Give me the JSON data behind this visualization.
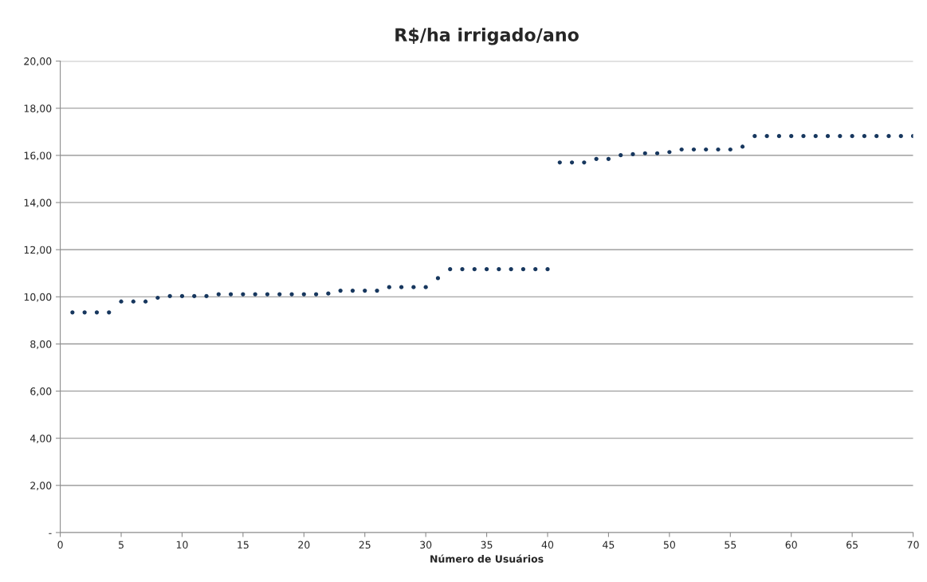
{
  "chart_data": {
    "type": "scatter",
    "title": "R$/ha irrigado/ano",
    "xlabel": "Número de Usuários",
    "x": [
      1,
      2,
      3,
      4,
      5,
      6,
      7,
      8,
      9,
      10,
      11,
      12,
      13,
      14,
      15,
      16,
      17,
      18,
      19,
      20,
      21,
      22,
      23,
      24,
      25,
      26,
      27,
      28,
      29,
      30,
      31,
      32,
      33,
      34,
      35,
      36,
      37,
      38,
      39,
      40,
      41,
      42,
      43,
      44,
      45,
      46,
      47,
      48,
      49,
      50,
      51,
      52,
      53,
      54,
      55,
      56,
      57,
      58,
      59,
      60,
      61,
      62,
      63,
      64,
      65,
      66,
      67,
      68,
      69,
      70
    ],
    "series": [
      {
        "color": "#17375e",
        "values": [
          9.34,
          9.34,
          9.34,
          9.34,
          9.8,
          9.8,
          9.8,
          9.96,
          10.03,
          10.03,
          10.03,
          10.03,
          10.11,
          10.11,
          10.11,
          10.11,
          10.11,
          10.11,
          10.11,
          10.11,
          10.11,
          10.14,
          10.26,
          10.26,
          10.26,
          10.26,
          10.41,
          10.41,
          10.41,
          10.41,
          10.79,
          11.17,
          11.17,
          11.17,
          11.17,
          11.17,
          11.17,
          11.17,
          11.17,
          11.17,
          15.7,
          15.7,
          15.7,
          15.85,
          15.85,
          16.01,
          16.05,
          16.09,
          16.09,
          16.14,
          16.25,
          16.25,
          16.25,
          16.25,
          16.25,
          16.37,
          16.82,
          16.82,
          16.82,
          16.82,
          16.82,
          16.82,
          16.82,
          16.82,
          16.82,
          16.82,
          16.82,
          16.82,
          16.82,
          16.82
        ]
      }
    ],
    "xlim": [
      0,
      70
    ],
    "xticks": [
      0,
      5,
      10,
      15,
      20,
      25,
      30,
      35,
      40,
      45,
      50,
      55,
      60,
      65,
      70
    ],
    "ylim": [
      0,
      20
    ],
    "yticks": [
      {
        "value": 0,
        "label": "-"
      },
      {
        "value": 2,
        "label": "2,00"
      },
      {
        "value": 4,
        "label": "4,00"
      },
      {
        "value": 6,
        "label": "6,00"
      },
      {
        "value": 8,
        "label": "8,00"
      },
      {
        "value": 10,
        "label": "10,00"
      },
      {
        "value": 12,
        "label": "12,00"
      },
      {
        "value": 14,
        "label": "14,00"
      },
      {
        "value": 16,
        "label": "16,00"
      },
      {
        "value": 18,
        "label": "18,00"
      },
      {
        "value": 20,
        "label": "20,00"
      }
    ],
    "grid": "y",
    "marker": "circle",
    "legend": false
  }
}
